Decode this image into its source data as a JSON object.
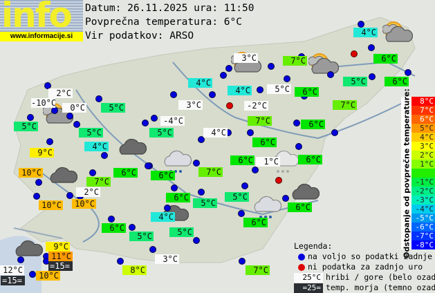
{
  "logo": {
    "text": "info",
    "url": "www.informacije.si"
  },
  "header": {
    "date_line": "Datum: 26.11.2025 ura: 11:50",
    "avg_line": "Povprečna temperatura: 6°C",
    "source_line": "Vir podatkov: ARSO"
  },
  "colors": {
    "station_dot": "#0000dd",
    "missing_dot": "#dd0000"
  },
  "stations": [
    {
      "t": "2°C",
      "c": "white"
    },
    {
      "t": "-10°C",
      "c": "white"
    },
    {
      "t": "0°C",
      "c": "white"
    },
    {
      "t": "5°C",
      "c": "mint"
    },
    {
      "t": "5°C",
      "c": "mint"
    },
    {
      "t": "5°C",
      "c": "mint"
    },
    {
      "t": "3°C",
      "c": "white"
    },
    {
      "t": "-4°C",
      "c": "white"
    },
    {
      "t": "5°C",
      "c": "mint"
    },
    {
      "t": "4°C",
      "c": "cyan"
    },
    {
      "t": "9°C",
      "c": "yellow"
    },
    {
      "t": "10°C",
      "c": "orange"
    },
    {
      "t": "7°C",
      "c": "lime"
    },
    {
      "t": "6°C",
      "c": "green"
    },
    {
      "t": "6°C",
      "c": "green"
    },
    {
      "t": "2°C",
      "c": "white"
    },
    {
      "t": "10°C",
      "c": "orange"
    },
    {
      "t": "10°C",
      "c": "orange"
    },
    {
      "t": "4°C",
      "c": "cyan"
    },
    {
      "t": "4°C",
      "c": "cyan"
    },
    {
      "t": "3°C",
      "c": "white"
    },
    {
      "t": "5°C",
      "c": "white"
    },
    {
      "t": "6°C",
      "c": "green"
    },
    {
      "t": "7°C",
      "c": "lime"
    },
    {
      "t": "-2°C",
      "c": "white"
    },
    {
      "t": "7°C",
      "c": "lime"
    },
    {
      "t": "4°C",
      "c": "cyan"
    },
    {
      "t": "6°C",
      "c": "green"
    },
    {
      "t": "5°C",
      "c": "mint"
    },
    {
      "t": "6°C",
      "c": "green"
    },
    {
      "t": "7°C",
      "c": "lime"
    },
    {
      "t": "4°C",
      "c": "white"
    },
    {
      "t": "6°C",
      "c": "green"
    },
    {
      "t": "6°C",
      "c": "green"
    },
    {
      "t": "6°C",
      "c": "green"
    },
    {
      "t": "1°C",
      "c": "white"
    },
    {
      "t": "6°C",
      "c": "green"
    },
    {
      "t": "7°C",
      "c": "lime"
    },
    {
      "t": "6°C",
      "c": "green"
    },
    {
      "t": "5°C",
      "c": "mint"
    },
    {
      "t": "5°C",
      "c": "mint"
    },
    {
      "t": "6°C",
      "c": "green"
    },
    {
      "t": "4°C",
      "c": "cyan"
    },
    {
      "t": "6°C",
      "c": "green"
    },
    {
      "t": "6°C",
      "c": "green"
    },
    {
      "t": "5°C",
      "c": "mint"
    },
    {
      "t": "5°C",
      "c": "mint"
    },
    {
      "t": "9°C",
      "c": "yellow"
    },
    {
      "t": "11°C",
      "c": "dorange"
    },
    {
      "t": "=15=",
      "c": "dark"
    },
    {
      "t": "12°C",
      "c": "white"
    },
    {
      "t": "=15=",
      "c": "dark"
    },
    {
      "t": "10°C",
      "c": "orange"
    },
    {
      "t": "8°C",
      "c": "yg"
    },
    {
      "t": "3°C",
      "c": "white"
    },
    {
      "t": "7°C",
      "c": "lime"
    }
  ],
  "weather_icons": [
    "partly-cloudy",
    "partly-cloudy",
    "partly-cloudy",
    "partly-cloudy",
    "cloudy",
    "cloudy",
    "cloudy",
    "cloudy",
    "cloudy",
    "rain",
    "rain",
    "light-rain"
  ],
  "scale": {
    "title": "Odstopanje od povprečne temperature:",
    "rows": [
      {
        "t": "8°C",
        "bg": "#ff0000",
        "fg": "#fff"
      },
      {
        "t": "7°C",
        "bg": "#ff3300",
        "fg": "#fff"
      },
      {
        "t": "6°C",
        "bg": "#ff6600",
        "fg": "#fff"
      },
      {
        "t": "5°C",
        "bg": "#ff9900",
        "fg": "#222"
      },
      {
        "t": "4°C",
        "bg": "#ffcc00",
        "fg": "#222"
      },
      {
        "t": "3°C",
        "bg": "#ffff00",
        "fg": "#222"
      },
      {
        "t": "2°C",
        "bg": "#ccff00",
        "fg": "#222"
      },
      {
        "t": "1°C",
        "bg": "#88ff00",
        "fg": "#222"
      },
      {
        "t": "",
        "bg": "#22ee00",
        "fg": "#222"
      },
      {
        "t": "-1°C",
        "bg": "#00ee44",
        "fg": "#222"
      },
      {
        "t": "-2°C",
        "bg": "#00ee88",
        "fg": "#222"
      },
      {
        "t": "-3°C",
        "bg": "#00eebb",
        "fg": "#222"
      },
      {
        "t": "-4°C",
        "bg": "#00ccee",
        "fg": "#222"
      },
      {
        "t": "-5°C",
        "bg": "#0099ee",
        "fg": "#fff"
      },
      {
        "t": "-6°C",
        "bg": "#0066ff",
        "fg": "#fff"
      },
      {
        "t": "-7°C",
        "bg": "#0033ff",
        "fg": "#fff"
      },
      {
        "t": "-8°C",
        "bg": "#0000ff",
        "fg": "#fff"
      }
    ]
  },
  "legend": {
    "title": "Legenda:",
    "blue": "na voljo so podatki zadnje ure",
    "red": "ni podatka za zadnjo uro",
    "hill_sample": "25°C",
    "hill": "hribi / gore (belo ozadje)",
    "sea_sample": "=25=",
    "sea": "temp. morja (temno ozadje)"
  }
}
